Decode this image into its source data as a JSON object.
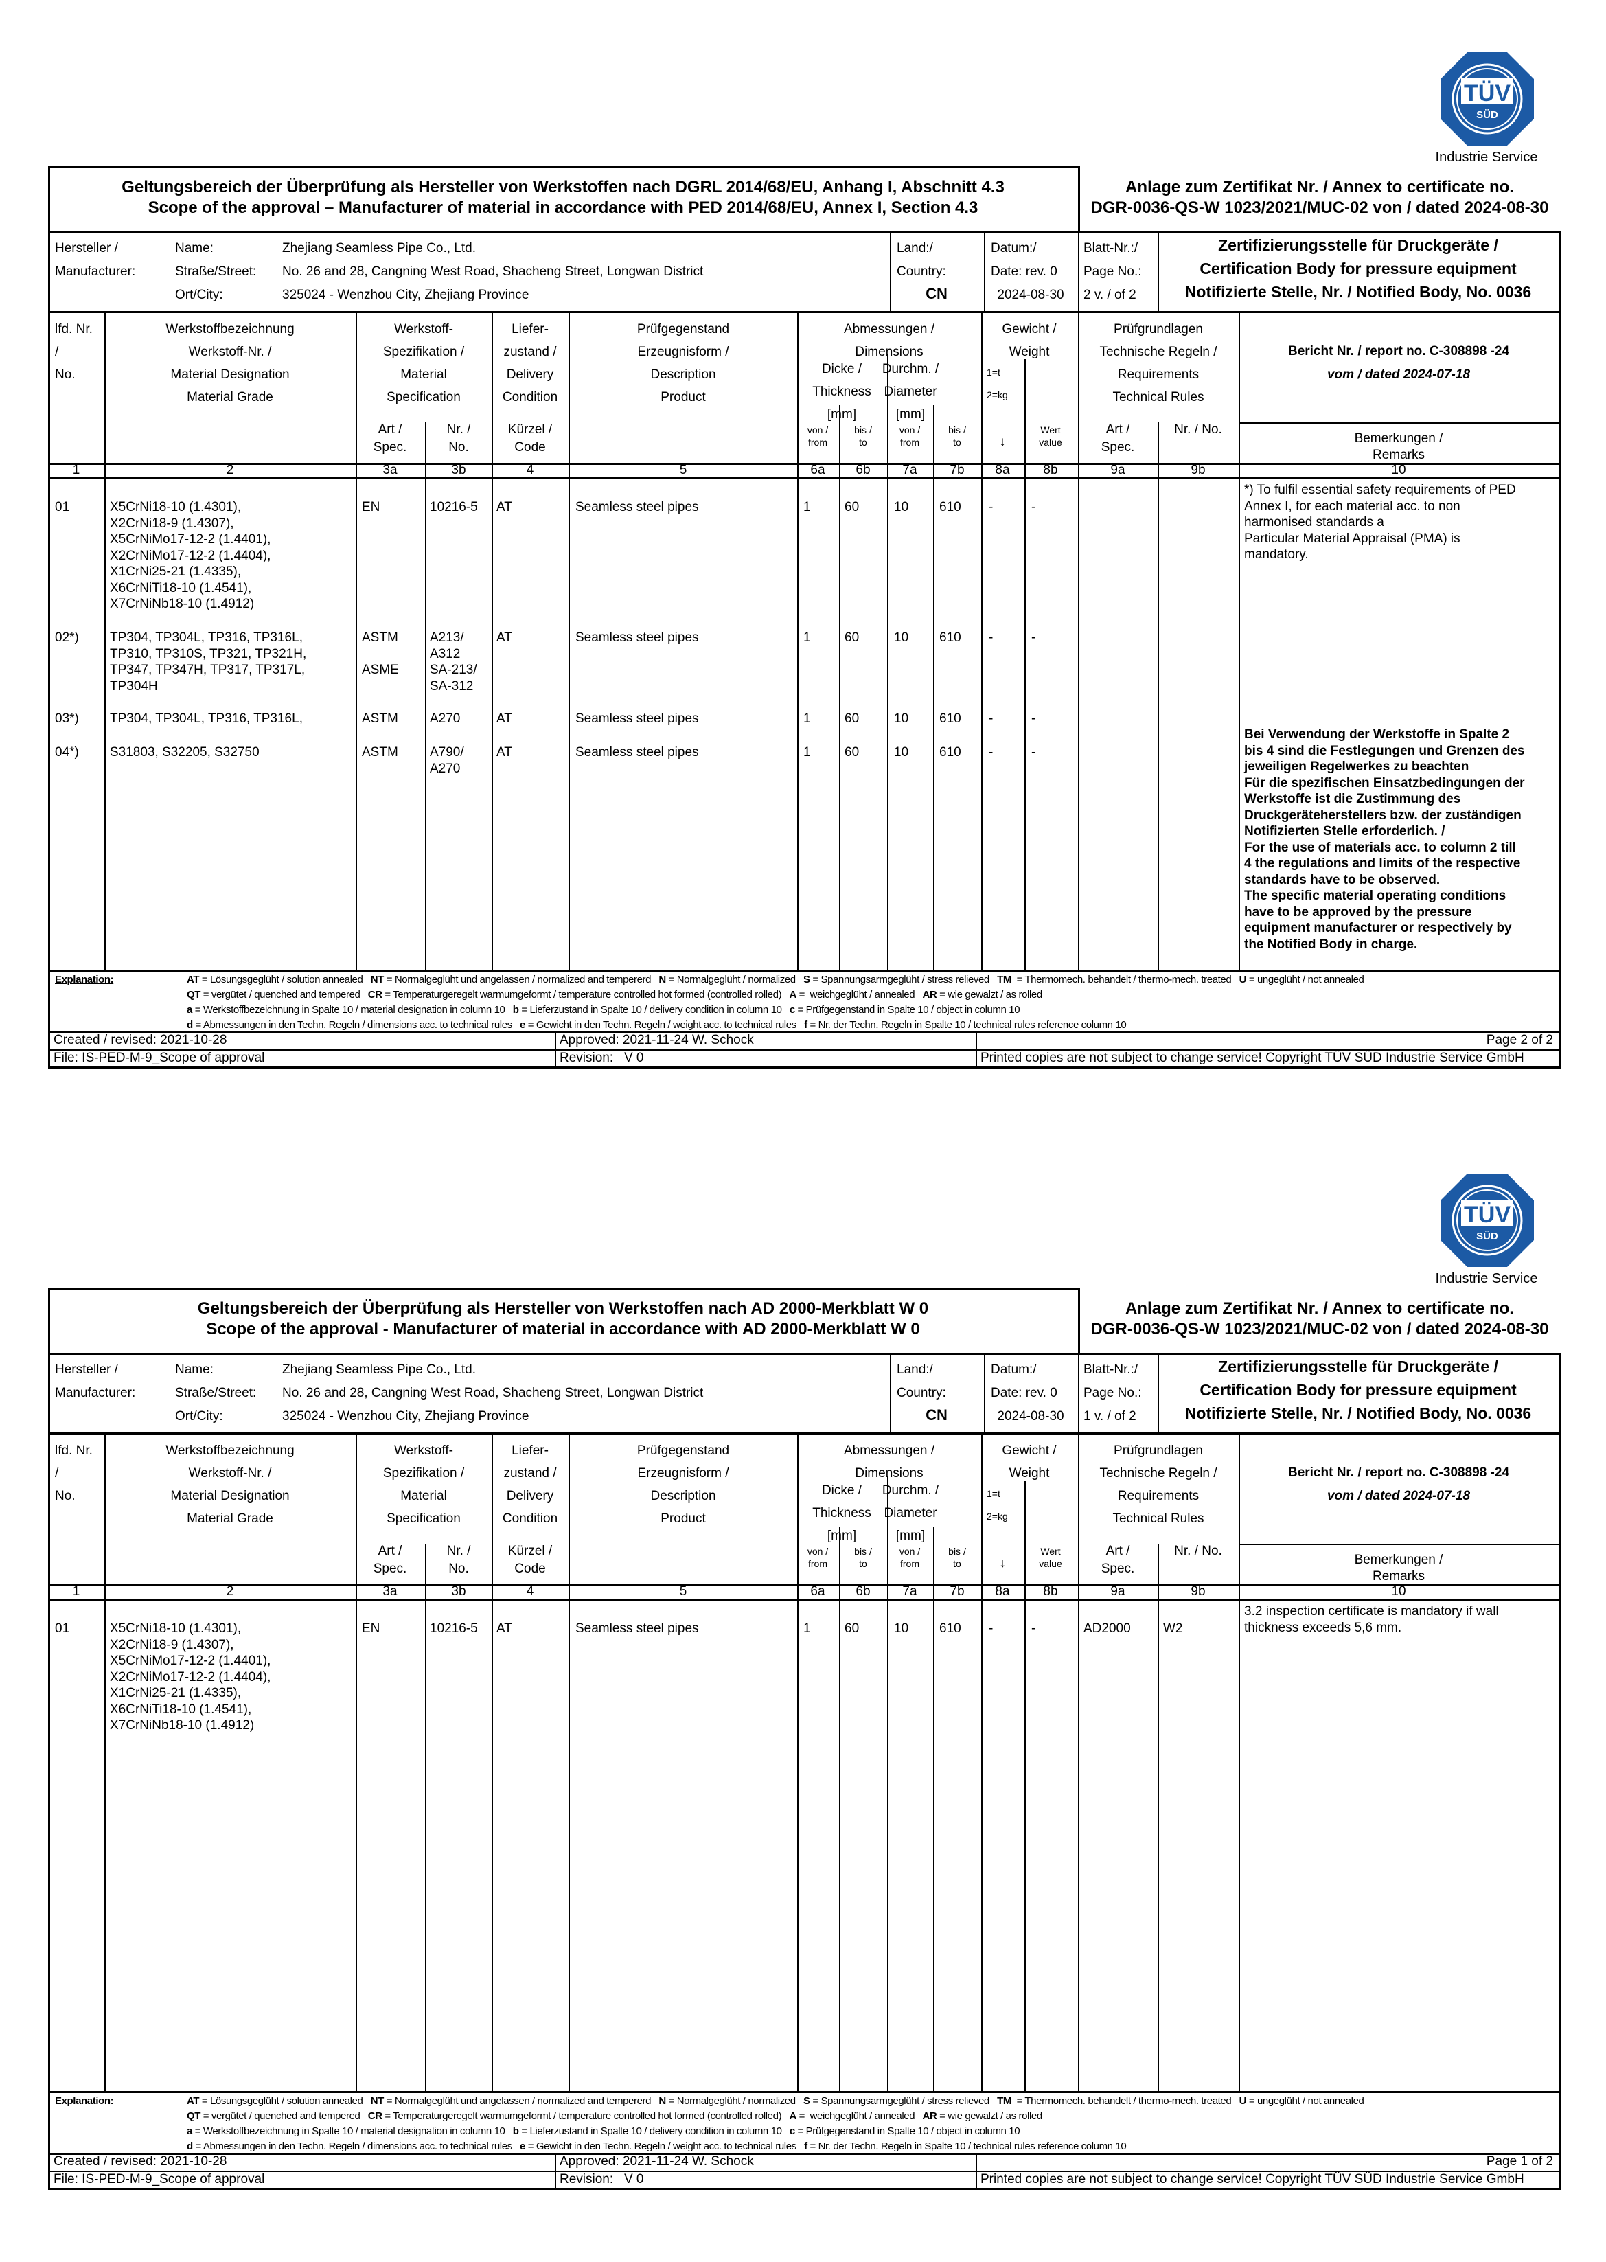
{
  "logo": {
    "text_top": "TÜV",
    "text_bottom": "SÜD",
    "caption": "Industrie Service",
    "color": "#1c5aa5"
  },
  "header_labels": {
    "manufacturer": [
      "Hersteller /",
      "Manufacturer:"
    ],
    "name": "Name:",
    "street": "Straße/Street:",
    "city": "Ort/City:",
    "land": "Land:/",
    "country": "Country:",
    "datum": "Datum:/",
    "date_rev": "Date: rev. 0",
    "blatt": "Blatt-Nr.:/",
    "page_no": "Page No.:",
    "body": [
      "Zertifizierungsstelle für Druckgeräte /",
      "Certification Body for pressure equipment",
      "Notifizierte Stelle, Nr. / Notified Body, No. 0036"
    ]
  },
  "manufacturer": {
    "name": "Zhejiang Seamless Pipe Co., Ltd.",
    "street": "No. 26 and 28, Cangning West Road, Shacheng Street, Longwan District",
    "city": "325024 - Wenzhou City, Zhejiang Province",
    "country": "CN",
    "date": "2024-08-30"
  },
  "table_header": {
    "c1": [
      "lfd. Nr.",
      "/",
      "No."
    ],
    "c2": [
      "Werkstoffbezeichnung",
      "Werkstoff-Nr. /",
      "Material Designation",
      "Material Grade"
    ],
    "c3": [
      "Werkstoff-",
      "Spezifikation /",
      "Material",
      "Specification"
    ],
    "c3a": [
      "Art /",
      "Spec."
    ],
    "c3b": [
      "Nr. /",
      "No."
    ],
    "c4": [
      "Liefer-",
      "zustand /",
      "Delivery",
      "Condition"
    ],
    "c4sub": [
      "Kürzel /",
      "Code"
    ],
    "c5": [
      "Prüfgegenstand",
      "Erzeugnisform /",
      "Description",
      "Product"
    ],
    "c67": [
      "Abmessungen /",
      "Dimensions"
    ],
    "c6": [
      "Dicke /",
      "Thickness",
      "[mm]"
    ],
    "c7": [
      "Durchm. /",
      "Diameter",
      "[mm]"
    ],
    "from": [
      "von /",
      "from"
    ],
    "to": [
      "bis /",
      "to"
    ],
    "c8": [
      "Gewicht /",
      "Weight"
    ],
    "c8units": [
      "1=t",
      "2=kg"
    ],
    "c8a": "↓",
    "c8b": [
      "Wert",
      "value"
    ],
    "c9": [
      "Prüfgrundlagen",
      "Technische Regeln /",
      "Requirements",
      "Technical Rules"
    ],
    "c9a": [
      "Art /",
      "Spec."
    ],
    "c9b": "Nr. / No.",
    "report": "Bericht Nr. / report no. C-308898 -24",
    "report_date": "vom / dated 2024-07-18",
    "c10": [
      "Bemerkungen /",
      "Remarks"
    ],
    "numbers": [
      "1",
      "2",
      "3a",
      "3b",
      "4",
      "5",
      "6a",
      "6b",
      "7a",
      "7b",
      "8a",
      "8b",
      "9a",
      "9b",
      "10"
    ]
  },
  "explanation": {
    "label": "Explanation:",
    "lines": [
      [
        [
          "AT",
          " = Lösungsgeglüht / solution annealed   "
        ],
        [
          "NT",
          " = Normalgeglüht und angelassen / normalized and tempererd   "
        ],
        [
          "N",
          " = Normalgeglüht / normalized   "
        ],
        [
          "S",
          " = Spannungsarmgeglüht / stress relieved   "
        ],
        [
          "TM",
          "  = Thermomech. behandelt / thermo-mech. treated   "
        ],
        [
          "U",
          " = ungeglüht / not annealed"
        ]
      ],
      [
        [
          "QT",
          " = vergütet / quenched and tempered   "
        ],
        [
          "CR",
          " = Temperaturgeregelt warmumgeformt / temperature controlled hot formed (controlled rolled)   "
        ],
        [
          "A",
          " =  weichgeglüht / annealed   "
        ],
        [
          "AR",
          " = wie gewalzt / as rolled"
        ]
      ],
      [
        [
          "a",
          " = Werkstoffbezeichnung in Spalte 10 / material designation in column 10   "
        ],
        [
          "b",
          " = Lieferzustand in Spalte 10 / delivery condition in column 10   "
        ],
        [
          "c",
          " = Prüfgegenstand in Spalte 10 / object in column 10"
        ]
      ],
      [
        [
          "d",
          " = Abmessungen in den Techn. Regeln / dimensions acc. to technical rules   "
        ],
        [
          "e",
          " = Gewicht in den Techn. Regeln / weight acc. to technical rules   "
        ],
        [
          "f",
          " = Nr. der Techn. Regeln in Spalte 10 / technical rules reference column 10"
        ]
      ]
    ]
  },
  "footer": {
    "created": "Created / revised: 2021-10-28",
    "approved": "Approved: 2021-11-24 W. Schock",
    "file": "File: IS-PED-M-9_Scope of approval",
    "revision": "Revision:   V 0",
    "copyright": "Printed copies are not subject to change service! Copyright TÜV SÜD Industrie Service GmbH"
  },
  "pages": [
    {
      "title": [
        "Geltungsbereich der Überprüfung als Hersteller von Werkstoffen nach DGRL 2014/68/EU, Anhang I, Abschnitt 4.3",
        "Scope of the approval – Manufacturer of material in accordance with PED 2014/68/EU, Annex I, Section 4.3"
      ],
      "annex": [
        "Anlage zum Zertifikat Nr. / Annex to certificate no.",
        "DGR-0036-QS-W 1023/2021/MUC-02 von / dated 2024-08-30"
      ],
      "page_no": "2 v. / of 2",
      "page_label": "Page 2 of 2",
      "rows": [
        {
          "no": "01",
          "grades": "X5CrNi18-10 (1.4301),\nX2CrNi18-9 (1.4307),\nX5CrNiMo17-12-2 (1.4401),\nX2CrNiMo17-12-2 (1.4404),\nX1CrNi25-21 (1.4335),\nX6CrNiTi18-10 (1.4541),\nX7CrNiNb18-10 (1.4912)",
          "spec": "EN",
          "spec_no": "10216-5",
          "code": "AT",
          "product": "Seamless steel pipes",
          "t_from": "1",
          "t_to": "60",
          "d_from": "10",
          "d_to": "610",
          "w_unit": "-",
          "w_value": "-",
          "rule": "",
          "rule_no": ""
        },
        {
          "no": "02*)",
          "grades": "TP304, TP304L, TP316, TP316L,\nTP310, TP310S, TP321, TP321H,\nTP347, TP347H, TP317, TP317L,\nTP304H",
          "spec": "ASTM\n\nASME",
          "spec_no": "A213/\nA312\nSA-213/\nSA-312",
          "code": "AT",
          "product": "Seamless steel pipes",
          "t_from": "1",
          "t_to": "60",
          "d_from": "10",
          "d_to": "610",
          "w_unit": "-",
          "w_value": "-",
          "rule": "",
          "rule_no": ""
        },
        {
          "no": "03*)",
          "grades": "TP304, TP304L, TP316, TP316L,",
          "spec": "ASTM",
          "spec_no": "A270",
          "code": "AT",
          "product": "Seamless steel pipes",
          "t_from": "1",
          "t_to": "60",
          "d_from": "10",
          "d_to": "610",
          "w_unit": "-",
          "w_value": "-",
          "rule": "",
          "rule_no": ""
        },
        {
          "no": "04*)",
          "grades": "S31803, S32205, S32750",
          "spec": "ASTM",
          "spec_no": "A790/\nA270",
          "code": "AT",
          "product": "Seamless steel pipes",
          "t_from": "1",
          "t_to": "60",
          "d_from": "10",
          "d_to": "610",
          "w_unit": "-",
          "w_value": "-",
          "rule": "",
          "rule_no": ""
        }
      ],
      "remarks": "*) To fulfil essential safety requirements of PED\nAnnex I, for each material acc. to non\nharmonised standards a\nParticular Material Appraisal (PMA) is\nmandatory.",
      "remarks_bold": "Bei Verwendung der Werkstoffe in Spalte 2\nbis 4 sind die Festlegungen und Grenzen des\njeweiligen Regelwerkes zu beachten\nFür die spezifischen Einsatzbedingungen der\nWerkstoffe ist die Zustimmung des\nDruckgeräteherstellers bzw. der zuständigen\nNotifizierten Stelle erforderlich. /\nFor the use of materials acc. to column 2 till\n4 the regulations and limits of the respective\nstandards have to be observed.\nThe specific material operating conditions\nhave to be approved by the pressure\nequipment manufacturer or respectively by\nthe Notified Body in charge."
    },
    {
      "title": [
        "Geltungsbereich der Überprüfung als Hersteller von Werkstoffen nach AD 2000-Merkblatt W 0",
        "Scope of the approval - Manufacturer of material in accordance with AD 2000-Merkblatt W 0"
      ],
      "annex": [
        "Anlage zum Zertifikat Nr. / Annex to certificate no.",
        "DGR-0036-QS-W 1023/2021/MUC-02 von / dated 2024-08-30"
      ],
      "page_no": "1 v. / of 2",
      "page_label": "Page 1 of 2",
      "rows": [
        {
          "no": "01",
          "grades": "X5CrNi18-10 (1.4301),\nX2CrNi18-9 (1.4307),\nX5CrNiMo17-12-2 (1.4401),\nX2CrNiMo17-12-2 (1.4404),\nX1CrNi25-21 (1.4335),\nX6CrNiTi18-10 (1.4541),\nX7CrNiNb18-10 (1.4912)",
          "spec": "EN",
          "spec_no": "10216-5",
          "code": "AT",
          "product": "Seamless steel pipes",
          "t_from": "1",
          "t_to": "60",
          "d_from": "10",
          "d_to": "610",
          "w_unit": "-",
          "w_value": "-",
          "rule": "AD2000",
          "rule_no": "W2"
        }
      ],
      "remarks": "3.2 inspection certificate is mandatory if wall\nthickness exceeds 5,6 mm.",
      "remarks_bold": ""
    }
  ]
}
